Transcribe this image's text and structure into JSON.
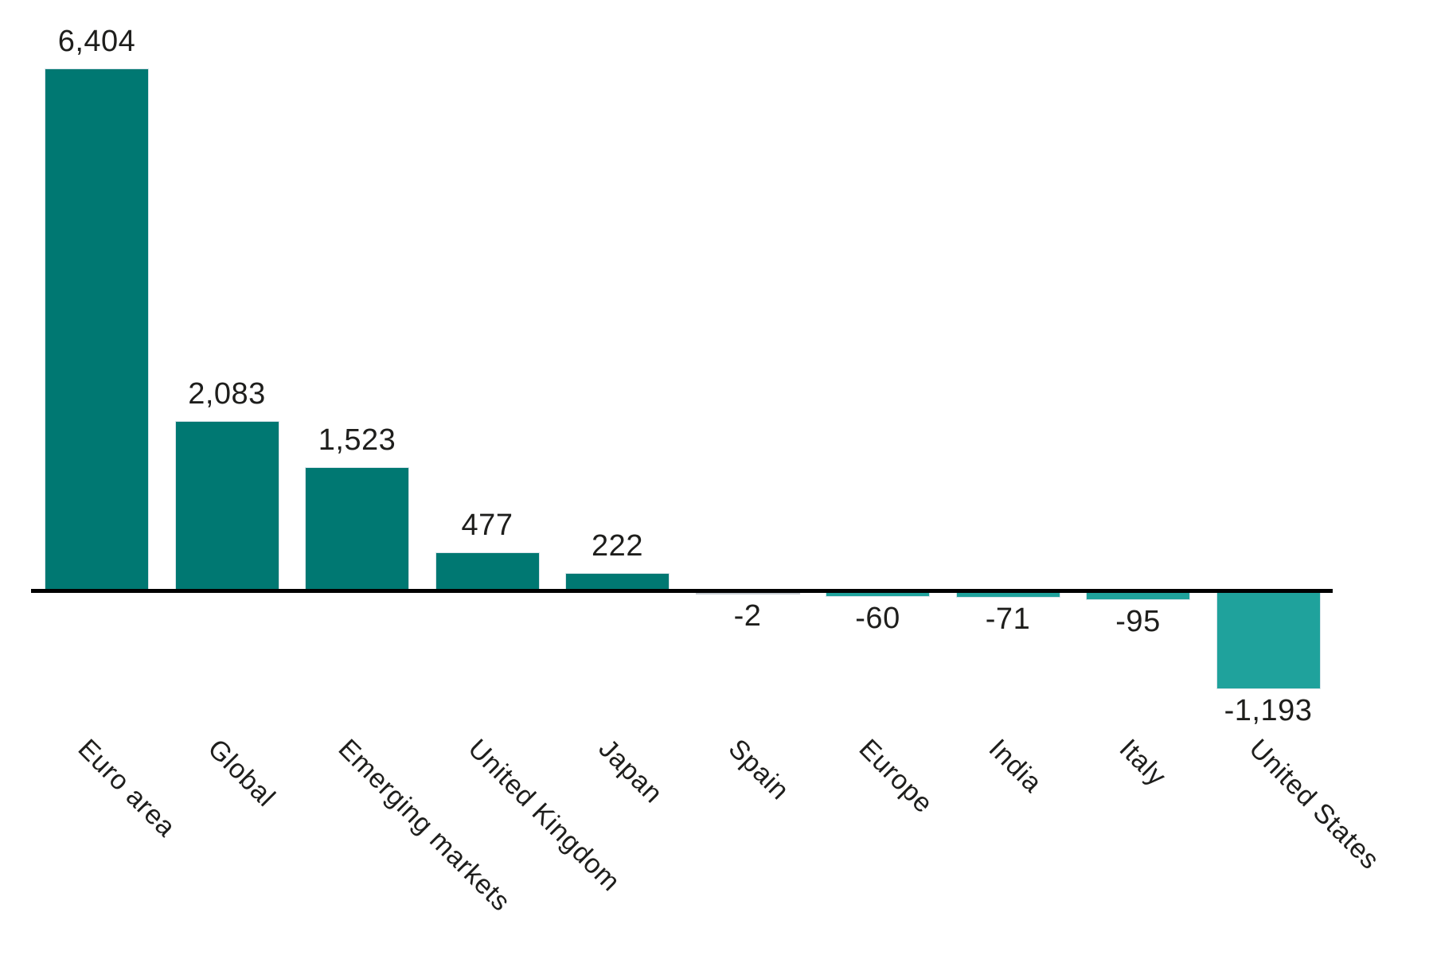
{
  "chart_data": {
    "type": "bar",
    "title": "",
    "xlabel": "",
    "ylabel": "",
    "orientation": "vertical",
    "baseline": 0,
    "grid": false,
    "legend": false,
    "y_axis_visible": false,
    "category_label_rotation_deg": 45,
    "categories": [
      "Euro area",
      "Global",
      "Emerging markets",
      "United Kingdom",
      "Japan",
      "Spain",
      "Europe",
      "India",
      "Italy",
      "United States"
    ],
    "values": [
      6404,
      2083,
      1523,
      477,
      222,
      -2,
      -60,
      -71,
      -95,
      -1193
    ],
    "value_labels": [
      "6,404",
      "2,083",
      "1,523",
      "477",
      "222",
      "-2",
      "-60",
      "-71",
      "-95",
      "-1,193"
    ],
    "ylim": [
      -1400,
      6600
    ],
    "colors": {
      "bar_positive": "#007872",
      "bar_negative": "#1fa29c",
      "bar_near_zero": "#c5cbd1",
      "bar_border": "#d9e4ea",
      "axis_line": "#000000",
      "label_text": "#1e1e1c"
    }
  }
}
